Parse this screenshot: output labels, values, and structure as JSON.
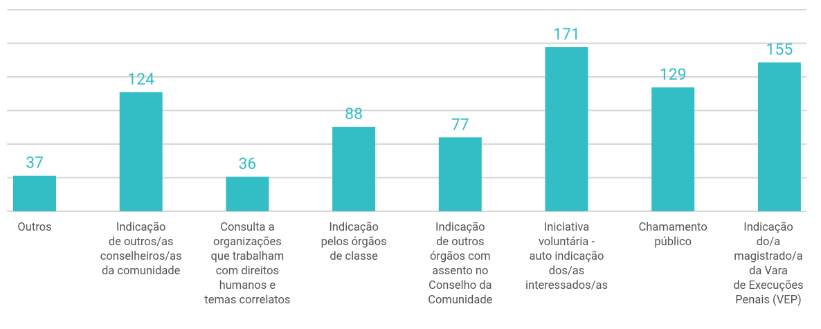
{
  "chart_data": {
    "type": "bar",
    "categories": [
      "Outros",
      "Indicação\nde outros/as\nconselheiros/as\nda comunidade",
      "Consulta a\norganizações\nque trabalham\ncom direitos\nhumanos e\ntemas correlatos",
      "Indicação\npelos órgãos\nde classe",
      "Indicação\nde outros\nórgãos com\nassento no\nConselho da\nComunidade",
      "Iniciativa\nvoluntária -\nauto indicação\ndos/as\ninteressados/as",
      "Chamamento\npúblico",
      "Indicação\ndo/a\nmagistrado/a\nda Vara\nde Execuções\nPenais (VEP)"
    ],
    "values": [
      37,
      124,
      36,
      88,
      77,
      171,
      129,
      155
    ],
    "color": "#33bec6",
    "ylim": [
      0,
      210
    ],
    "yticks": [
      0,
      35,
      70,
      105,
      140,
      175,
      210
    ],
    "grid": true
  }
}
